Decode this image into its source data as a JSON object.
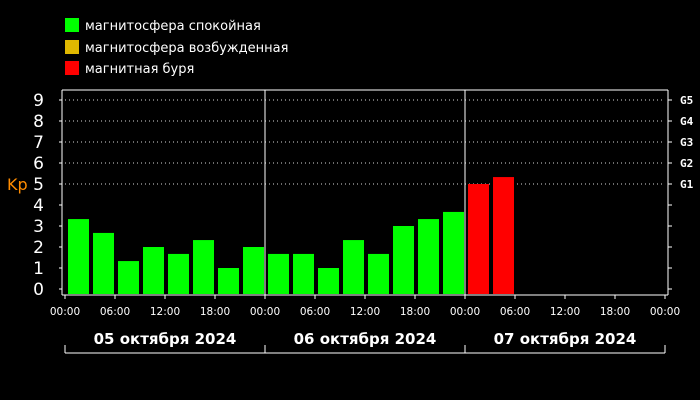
{
  "colors": {
    "background": "#000000",
    "quiet": "#00ff00",
    "active": "#e0b800",
    "storm": "#ff0000",
    "axis": "#ffffff",
    "grid": "#ffffff",
    "ylabel": "#ff8c00"
  },
  "legend": [
    {
      "label": "магнитосфера спокойная",
      "color": "#00ff00"
    },
    {
      "label": "магнитосфера возбужденная",
      "color": "#e0b800"
    },
    {
      "label": "магнитная буря",
      "color": "#ff0000"
    }
  ],
  "chart_data": {
    "type": "bar",
    "ylabel": "Kp",
    "ylim": [
      0,
      9
    ],
    "y_ticks": [
      "0",
      "1",
      "2",
      "3",
      "4",
      "5",
      "6",
      "7",
      "8",
      "9"
    ],
    "g_levels": [
      {
        "label": "G1",
        "kp": 5
      },
      {
        "label": "G2",
        "kp": 6
      },
      {
        "label": "G3",
        "kp": 7
      },
      {
        "label": "G4",
        "kp": 8
      },
      {
        "label": "G5",
        "kp": 9
      }
    ],
    "x_ticks": [
      "00:00",
      "06:00",
      "12:00",
      "18:00",
      "00:00",
      "06:00",
      "12:00",
      "18:00",
      "00:00",
      "06:00",
      "12:00",
      "18:00",
      "00:00"
    ],
    "days": [
      "05 октября 2024",
      "06 октября 2024",
      "07 октября 2024"
    ],
    "bars_per_day": 8,
    "grid": "dotted horizontal at Kp 5–9",
    "values": [
      3.33,
      2.67,
      1.33,
      2.0,
      1.67,
      2.33,
      1.0,
      2.0,
      1.67,
      1.67,
      1.0,
      2.33,
      1.67,
      3.0,
      3.33,
      3.67,
      5.0,
      5.33
    ],
    "bar_colors": [
      "#00ff00",
      "#00ff00",
      "#00ff00",
      "#00ff00",
      "#00ff00",
      "#00ff00",
      "#00ff00",
      "#00ff00",
      "#00ff00",
      "#00ff00",
      "#00ff00",
      "#00ff00",
      "#00ff00",
      "#00ff00",
      "#00ff00",
      "#00ff00",
      "#ff0000",
      "#ff0000"
    ]
  }
}
